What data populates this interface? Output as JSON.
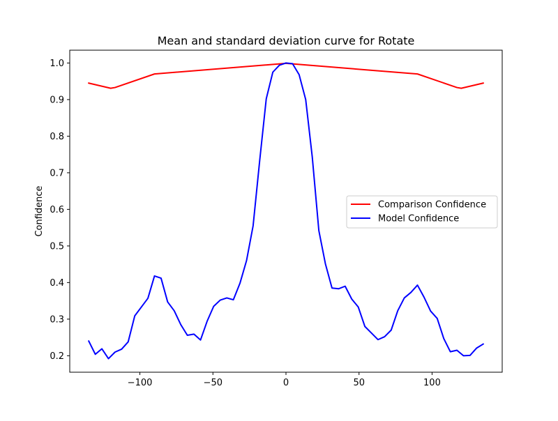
{
  "chart_data": {
    "type": "line",
    "title": "Mean and standard deviation curve for Rotate",
    "xlabel": "",
    "ylabel": "Confidence",
    "xlim": [
      -148,
      148
    ],
    "ylim": [
      0.155,
      1.035
    ],
    "xticks": [
      -100,
      -50,
      0,
      50,
      100
    ],
    "xtick_labels": [
      "−100",
      "−50",
      "0",
      "50",
      "100"
    ],
    "yticks": [
      0.2,
      0.3,
      0.4,
      0.5,
      0.6,
      0.7,
      0.8,
      0.9,
      1.0
    ],
    "ytick_labels": [
      "0.2",
      "0.3",
      "0.4",
      "0.5",
      "0.6",
      "0.7",
      "0.8",
      "0.9",
      "1.0"
    ],
    "grid": false,
    "legend_position": "center-right",
    "series": [
      {
        "name": "Comparison Confidence",
        "color": "#ff0000",
        "points": [
          [
            -135,
            0.945
          ],
          [
            -120,
            0.931
          ],
          [
            -117,
            0.933
          ],
          [
            -90,
            0.97
          ],
          [
            0,
            0.999
          ],
          [
            90,
            0.97
          ],
          [
            117,
            0.933
          ],
          [
            120,
            0.931
          ],
          [
            135,
            0.945
          ]
        ]
      },
      {
        "name": "Model Confidence",
        "color": "#0000ff",
        "points": [
          [
            -135,
            0.24
          ],
          [
            -130.5,
            0.204
          ],
          [
            -126,
            0.219
          ],
          [
            -121.5,
            0.192
          ],
          [
            -117,
            0.21
          ],
          [
            -112.5,
            0.218
          ],
          [
            -108,
            0.238
          ],
          [
            -103.5,
            0.309
          ],
          [
            -99,
            0.333
          ],
          [
            -94.5,
            0.357
          ],
          [
            -90,
            0.418
          ],
          [
            -85.5,
            0.412
          ],
          [
            -81,
            0.347
          ],
          [
            -76.5,
            0.323
          ],
          [
            -72,
            0.285
          ],
          [
            -67.5,
            0.256
          ],
          [
            -63,
            0.259
          ],
          [
            -58.5,
            0.243
          ],
          [
            -54,
            0.294
          ],
          [
            -49.5,
            0.335
          ],
          [
            -45,
            0.352
          ],
          [
            -40.5,
            0.358
          ],
          [
            -36,
            0.353
          ],
          [
            -31.5,
            0.398
          ],
          [
            -27,
            0.46
          ],
          [
            -22.5,
            0.555
          ],
          [
            -18,
            0.733
          ],
          [
            -13.5,
            0.902
          ],
          [
            -9,
            0.975
          ],
          [
            -4.5,
            0.994
          ],
          [
            0,
            1.0
          ],
          [
            4.5,
            0.998
          ],
          [
            9,
            0.968
          ],
          [
            13.5,
            0.9
          ],
          [
            18,
            0.743
          ],
          [
            22.5,
            0.542
          ],
          [
            27,
            0.451
          ],
          [
            31.5,
            0.385
          ],
          [
            36,
            0.383
          ],
          [
            40.5,
            0.39
          ],
          [
            45,
            0.355
          ],
          [
            49.5,
            0.333
          ],
          [
            54,
            0.28
          ],
          [
            58.5,
            0.262
          ],
          [
            63,
            0.244
          ],
          [
            67.5,
            0.252
          ],
          [
            72,
            0.27
          ],
          [
            76.5,
            0.323
          ],
          [
            81,
            0.358
          ],
          [
            85.5,
            0.373
          ],
          [
            90,
            0.393
          ],
          [
            94.5,
            0.36
          ],
          [
            99,
            0.322
          ],
          [
            103.5,
            0.302
          ],
          [
            108,
            0.247
          ],
          [
            112.5,
            0.211
          ],
          [
            117,
            0.215
          ],
          [
            121.5,
            0.2
          ],
          [
            126,
            0.201
          ],
          [
            130.5,
            0.221
          ],
          [
            135,
            0.232
          ]
        ]
      }
    ]
  }
}
